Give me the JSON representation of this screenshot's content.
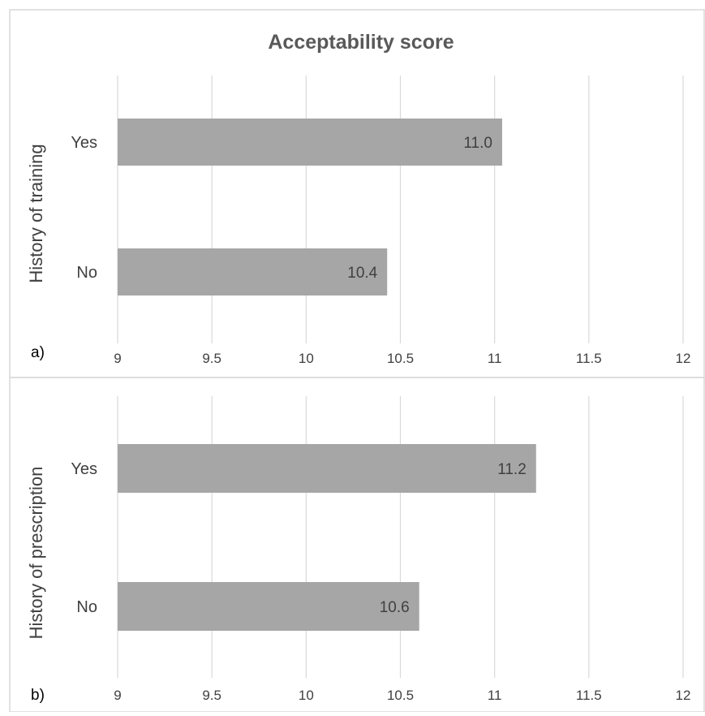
{
  "chart_data": {
    "type": "bar",
    "orientation": "horizontal",
    "title": "Acceptability score",
    "xlim": [
      9,
      12
    ],
    "xticks": [
      "9",
      "9.5",
      "10",
      "10.5",
      "11",
      "11.5",
      "12"
    ],
    "grid": true,
    "panels": [
      {
        "panel_label": "a)",
        "ylabel": "History of training",
        "categories": [
          "Yes",
          "No"
        ],
        "values": [
          11.04,
          10.43
        ],
        "data_labels": [
          "11.0",
          "10.4"
        ]
      },
      {
        "panel_label": "b)",
        "ylabel": "History of prescription",
        "categories": [
          "Yes",
          "No"
        ],
        "values": [
          11.22,
          10.6
        ],
        "data_labels": [
          "11.2",
          "10.6"
        ]
      }
    ],
    "colors": {
      "bar": "#a6a6a6",
      "grid": "#d9d9d9",
      "text": "#404040",
      "title": "#595959"
    }
  }
}
